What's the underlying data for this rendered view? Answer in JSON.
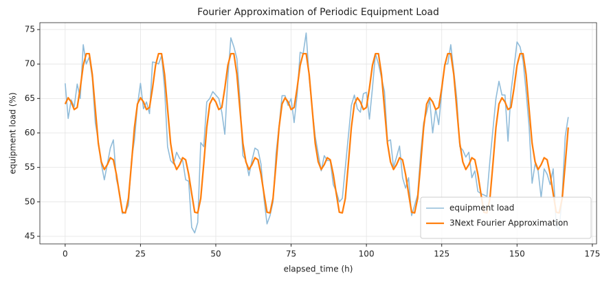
{
  "chart_data": {
    "type": "line",
    "title": "Fourier Approximation of Periodic Equipment Load",
    "xlabel": "elapsed_time (h)",
    "ylabel": "equipment load (%)",
    "x": [
      0,
      1,
      2,
      3,
      4,
      5,
      6,
      7,
      8,
      9,
      10,
      11,
      12,
      13,
      14,
      15,
      16,
      17,
      18,
      19,
      20,
      21,
      22,
      23,
      24,
      25,
      26,
      27,
      28,
      29,
      30,
      31,
      32,
      33,
      34,
      35,
      36,
      37,
      38,
      39,
      40,
      41,
      42,
      43,
      44,
      45,
      46,
      47,
      48,
      49,
      50,
      51,
      52,
      53,
      54,
      55,
      56,
      57,
      58,
      59,
      60,
      61,
      62,
      63,
      64,
      65,
      66,
      67,
      68,
      69,
      70,
      71,
      72,
      73,
      74,
      75,
      76,
      77,
      78,
      79,
      80,
      81,
      82,
      83,
      84,
      85,
      86,
      87,
      88,
      89,
      90,
      91,
      92,
      93,
      94,
      95,
      96,
      97,
      98,
      99,
      100,
      101,
      102,
      103,
      104,
      105,
      106,
      107,
      108,
      109,
      110,
      111,
      112,
      113,
      114,
      115,
      116,
      117,
      118,
      119,
      120,
      121,
      122,
      123,
      124,
      125,
      126,
      127,
      128,
      129,
      130,
      131,
      132,
      133,
      134,
      135,
      136,
      137,
      138,
      139,
      140,
      141,
      142,
      143,
      144,
      145,
      146,
      147,
      148,
      149,
      150,
      151,
      152,
      153,
      154,
      155,
      156,
      157,
      158,
      159,
      160,
      161,
      162,
      163,
      164,
      165,
      166,
      167
    ],
    "series": [
      {
        "name": "equipment load",
        "color": "#8fbbd9",
        "width": 1.6,
        "values": [
          67.2,
          62.1,
          64.8,
          63.8,
          67.1,
          65.0,
          72.8,
          70.0,
          71.0,
          68.0,
          61.5,
          58.8,
          55.5,
          53.2,
          55.5,
          57.8,
          59.0,
          53.3,
          51.5,
          48.3,
          48.5,
          49.5,
          56.0,
          59.0,
          64.0,
          67.2,
          63.5,
          64.5,
          62.8,
          70.3,
          70.2,
          70.0,
          71.2,
          66.5,
          58.0,
          56.0,
          55.5,
          57.2,
          56.3,
          56.0,
          53.2,
          53.0,
          46.3,
          45.5,
          47.0,
          58.6,
          58.0,
          64.5,
          65.0,
          66.0,
          65.5,
          65.0,
          63.0,
          59.8,
          68.0,
          73.8,
          72.5,
          70.8,
          65.0,
          56.7,
          56.0,
          53.8,
          56.0,
          57.8,
          57.5,
          55.5,
          50.5,
          46.8,
          48.0,
          50.0,
          57.0,
          61.0,
          65.4,
          65.4,
          64.0,
          65.0,
          61.5,
          65.5,
          71.7,
          71.5,
          74.5,
          68.0,
          63.5,
          59.5,
          57.0,
          54.5,
          56.7,
          56.0,
          56.0,
          52.5,
          51.5,
          50.0,
          50.5,
          55.0,
          59.5,
          64.0,
          65.5,
          63.5,
          63.0,
          65.7,
          65.9,
          62.0,
          66.5,
          71.5,
          70.0,
          68.0,
          66.0,
          58.8,
          59.0,
          55.0,
          56.5,
          58.1,
          53.5,
          52.0,
          53.5,
          48.0,
          49.5,
          51.0,
          57.0,
          61.5,
          63.0,
          64.8,
          60.0,
          63.5,
          61.2,
          66.0,
          70.0,
          70.0,
          72.8,
          69.0,
          65.0,
          58.0,
          57.5,
          56.5,
          57.2,
          53.5,
          54.5,
          51.5,
          51.2,
          51.0,
          50.8,
          56.0,
          60.5,
          65.0,
          67.5,
          65.5,
          65.5,
          58.8,
          66.0,
          69.5,
          73.2,
          72.5,
          70.5,
          66.0,
          61.0,
          52.7,
          55.5,
          54.5,
          50.6,
          54.8,
          54.0,
          52.5,
          54.8,
          46.5,
          46.0,
          51.0,
          59.5,
          62.3
        ]
      },
      {
        "name": "3Next Fourier Approximation",
        "color": "#ff7f0e",
        "width": 2.3,
        "values": [
          64.2,
          65.1,
          64.5,
          63.4,
          63.7,
          66.5,
          69.8,
          71.5,
          71.5,
          68.5,
          63.5,
          58.5,
          55.8,
          54.7,
          55.4,
          56.4,
          56.1,
          54.0,
          51.2,
          48.5,
          48.4,
          50.5,
          55.5,
          60.8,
          64.2,
          65.1,
          64.5,
          63.4,
          63.7,
          66.5,
          69.8,
          71.5,
          71.5,
          68.5,
          63.5,
          58.5,
          55.8,
          54.7,
          55.4,
          56.4,
          56.1,
          54.0,
          51.2,
          48.5,
          48.4,
          50.5,
          55.5,
          60.8,
          64.2,
          65.1,
          64.5,
          63.4,
          63.7,
          66.5,
          69.8,
          71.5,
          71.5,
          68.5,
          63.5,
          58.5,
          55.8,
          54.7,
          55.4,
          56.4,
          56.1,
          54.0,
          51.2,
          48.5,
          48.4,
          50.5,
          55.5,
          60.8,
          64.2,
          65.1,
          64.5,
          63.4,
          63.7,
          66.5,
          69.8,
          71.5,
          71.5,
          68.5,
          63.5,
          58.5,
          55.8,
          54.7,
          55.4,
          56.4,
          56.1,
          54.0,
          51.2,
          48.5,
          48.4,
          50.5,
          55.5,
          60.8,
          64.2,
          65.1,
          64.5,
          63.4,
          63.7,
          66.5,
          69.8,
          71.5,
          71.5,
          68.5,
          63.5,
          58.5,
          55.8,
          54.7,
          55.4,
          56.4,
          56.1,
          54.0,
          51.2,
          48.5,
          48.4,
          50.5,
          55.5,
          60.8,
          64.2,
          65.1,
          64.5,
          63.4,
          63.7,
          66.5,
          69.8,
          71.5,
          71.5,
          68.5,
          63.5,
          58.5,
          55.8,
          54.7,
          55.4,
          56.4,
          56.1,
          54.0,
          51.2,
          48.5,
          48.4,
          50.5,
          55.5,
          60.8,
          64.2,
          65.1,
          64.5,
          63.4,
          63.7,
          66.5,
          69.8,
          71.5,
          71.5,
          68.5,
          63.5,
          58.5,
          55.8,
          54.7,
          55.4,
          56.4,
          56.1,
          54.0,
          51.2,
          48.5,
          48.4,
          50.5,
          55.5,
          60.8
        ]
      }
    ],
    "xlim": [
      -8.4,
      176.4
    ],
    "xticks": [
      0,
      25,
      50,
      75,
      100,
      125,
      150,
      175
    ],
    "ylim": [
      43.9,
      76.0
    ],
    "yticks": [
      45,
      50,
      55,
      60,
      65,
      70,
      75
    ],
    "grid": true,
    "legend": "lower right"
  }
}
